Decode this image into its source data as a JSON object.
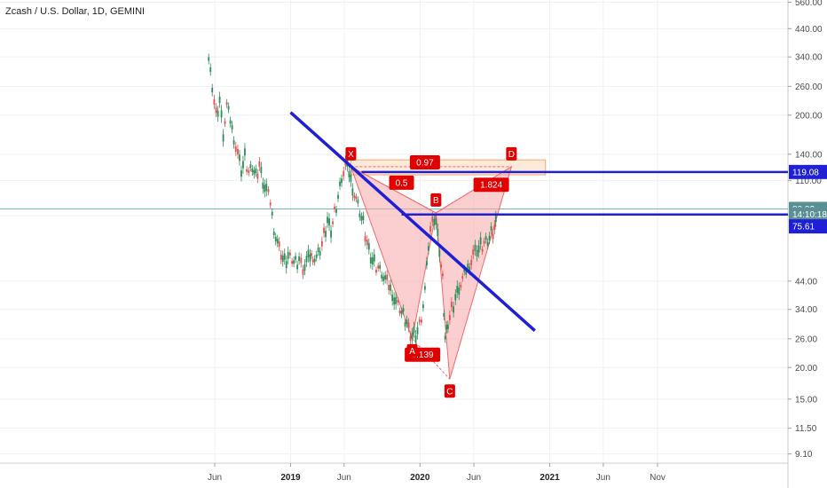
{
  "chart_data": {
    "type": "line",
    "title": "Zcash / U.S. Dollar, 1D, GEMINI",
    "y_scale": "log",
    "ylim": [
      8.5,
      600
    ],
    "y_ticks": [
      "560.00",
      "440.00",
      "340.00",
      "260.00",
      "200.00",
      "140.00",
      "110.00",
      "80.00",
      "44.00",
      "34.00",
      "26.00",
      "20.00",
      "15.00",
      "11.50",
      "9.10"
    ],
    "x_ticks": [
      {
        "label": "Jun",
        "date": "2018-06-01",
        "bold": false
      },
      {
        "label": "2019",
        "date": "2019-01-01",
        "bold": true
      },
      {
        "label": "Jun",
        "date": "2019-06-01",
        "bold": false
      },
      {
        "label": "2020",
        "date": "2020-01-01",
        "bold": true
      },
      {
        "label": "Jun",
        "date": "2020-06-01",
        "bold": false
      },
      {
        "label": "2021",
        "date": "2021-01-01",
        "bold": true
      },
      {
        "label": "Jun",
        "date": "2021-06-01",
        "bold": false
      },
      {
        "label": "Nov",
        "date": "2021-11-01",
        "bold": false
      }
    ],
    "series": [
      {
        "x": [
          "2018-05-15",
          "2018-05-25",
          "2018-06-05",
          "2018-06-15",
          "2018-06-25",
          "2018-07-05",
          "2018-07-15",
          "2018-07-25",
          "2018-08-05",
          "2018-08-15",
          "2018-08-25",
          "2018-09-05",
          "2018-09-15",
          "2018-09-25",
          "2018-10-05",
          "2018-10-15",
          "2018-10-25",
          "2018-11-05",
          "2018-11-15",
          "2018-11-25",
          "2018-12-05",
          "2018-12-15",
          "2018-12-25",
          "2019-01-05",
          "2019-01-15",
          "2019-01-25",
          "2019-02-05",
          "2019-02-15",
          "2019-02-25",
          "2019-03-05",
          "2019-03-15",
          "2019-03-25",
          "2019-04-05",
          "2019-04-15",
          "2019-04-25",
          "2019-05-05",
          "2019-05-15",
          "2019-05-25",
          "2019-06-05",
          "2019-06-15",
          "2019-06-25",
          "2019-07-05",
          "2019-07-15",
          "2019-07-25",
          "2019-08-05",
          "2019-08-15",
          "2019-08-25",
          "2019-09-05",
          "2019-09-15",
          "2019-09-25",
          "2019-10-05",
          "2019-10-15",
          "2019-10-25",
          "2019-11-05",
          "2019-11-15",
          "2019-11-25",
          "2019-12-05",
          "2019-12-15",
          "2019-12-25",
          "2020-01-05",
          "2020-01-15",
          "2020-01-25",
          "2020-02-05",
          "2020-02-15",
          "2020-02-25",
          "2020-03-05",
          "2020-03-12",
          "2020-03-20",
          "2020-03-30",
          "2020-04-10",
          "2020-04-20",
          "2020-04-30",
          "2020-05-10",
          "2020-05-20",
          "2020-05-30",
          "2020-06-10",
          "2020-06-20",
          "2020-06-30",
          "2020-07-10",
          "2020-07-20",
          "2020-07-30",
          "2020-08-05"
        ],
        "values": [
          330,
          260,
          200,
          230,
          170,
          215,
          190,
          165,
          140,
          120,
          135,
          118,
          125,
          115,
          128,
          110,
          100,
          90,
          72,
          62,
          56,
          52,
          55,
          54,
          52,
          54,
          50,
          52,
          55,
          56,
          54,
          58,
          66,
          76,
          70,
          82,
          95,
          115,
          125,
          118,
          105,
          92,
          82,
          74,
          62,
          55,
          52,
          50,
          48,
          44,
          42,
          40,
          36,
          34,
          32,
          30,
          27,
          27,
          28,
          32,
          40,
          60,
          82,
          74,
          58,
          44,
          26,
          30,
          34,
          38,
          42,
          44,
          48,
          52,
          56,
          58,
          60,
          62,
          64,
          68,
          72,
          80
        ]
      }
    ],
    "pattern": {
      "points": [
        {
          "label": "X",
          "date": "2019-06-20",
          "value": 125
        },
        {
          "label": "A",
          "date": "2019-12-10",
          "value": 26
        },
        {
          "label": "B",
          "date": "2020-02-15",
          "value": 82
        },
        {
          "label": "C",
          "date": "2020-03-25",
          "value": 18
        },
        {
          "label": "D",
          "date": "2020-09-15",
          "value": 125
        }
      ],
      "ratios": [
        {
          "label": "0.5",
          "date": "2019-11-10",
          "value": 108
        },
        {
          "label": "1.139",
          "date": "2020-01-08",
          "value": 22.5
        },
        {
          "label": "1.824",
          "date": "2020-07-20",
          "value": 106
        },
        {
          "label": "0.97",
          "date": "2020-01-15",
          "value": 130
        }
      ],
      "target_zone": {
        "date_from": "2019-06-20",
        "date_to": "2020-12-20",
        "value_from": 116,
        "value_to": 133
      }
    },
    "trendline": {
      "from": {
        "date": "2019-01-01",
        "value": 205
      },
      "to": {
        "date": "2020-11-20",
        "value": 28
      }
    },
    "horizontal_lines": [
      {
        "date_from": "2019-07-20",
        "value": 119.08
      },
      {
        "date_from": "2019-11-10",
        "value": 80.82
      }
    ],
    "current_price_line": {
      "value": 85
    },
    "price_tags": [
      {
        "label": "119.08",
        "value": 119.08,
        "color": "#1f1fd6"
      },
      {
        "label": "80.82",
        "value": 85,
        "color": "#5a8f94"
      },
      {
        "label": "14:10:18",
        "value": 80.8,
        "color": "#5a8f94"
      },
      {
        "label": "75.61",
        "value": 72.5,
        "color": "#1f1fd6"
      }
    ],
    "colors": {
      "trendline": "#1f1fd6",
      "pattern_stroke": "#f06a6a",
      "pattern_fill": "#f7a8a8",
      "point_badge": "#e00000",
      "candle_up": "#2e8b57",
      "candle_down": "#e05050",
      "current_price": "#6fb6bc"
    },
    "grid": true
  }
}
